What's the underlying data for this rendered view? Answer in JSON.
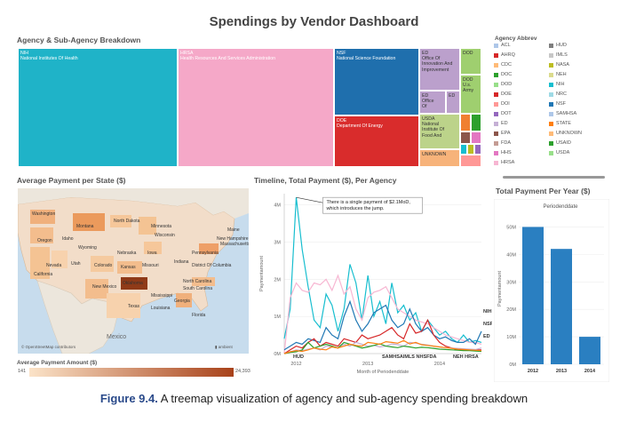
{
  "title": "Spendings by Vendor Dashboard",
  "treemap": {
    "heading": "Agency & Sub-Agency Breakdown",
    "cells": [
      {
        "id": "nih",
        "label": "NIH\nNational Institutes Of Health",
        "color": "#1fb3c8"
      },
      {
        "id": "hrsa",
        "label": "HRSA\nHealth Resources And Services Administration",
        "color": "#f5a8c8"
      },
      {
        "id": "nsf",
        "label": "NSF\nNational Science Foundation",
        "color": "#1f6fad"
      },
      {
        "id": "doe",
        "label": "DOE\nDepartment Of Energy",
        "color": "#d92c2c"
      },
      {
        "id": "ed1",
        "label": "ED\nOffice Of\nInnovation And\nImprovement",
        "color": "#bba0cc"
      },
      {
        "id": "ed2",
        "label": "ED\nOffice\nOf",
        "color": "#bba0cc"
      },
      {
        "id": "ed3",
        "label": "ED",
        "color": "#bba0cc"
      },
      {
        "id": "dod1",
        "label": "DOD",
        "color": "#9fcf6f"
      },
      {
        "id": "dod2",
        "label": "DOD\nU.s.\nArmy",
        "color": "#9fcf6f"
      },
      {
        "id": "usda",
        "label": "USDA\nNational\nInstitute Of\nFood And",
        "color": "#bcd38a"
      },
      {
        "id": "unknown",
        "label": "UNKNOWN",
        "color": "#f7b37a"
      },
      {
        "id": "s1",
        "label": "",
        "color": "#f08030"
      },
      {
        "id": "s2",
        "label": "",
        "color": "#2ca02c"
      },
      {
        "id": "s3",
        "label": "",
        "color": "#8c564b"
      },
      {
        "id": "s4",
        "label": "",
        "color": "#e377c2"
      },
      {
        "id": "s5",
        "label": "",
        "color": "#17becf"
      },
      {
        "id": "s6",
        "label": "",
        "color": "#bcbd22"
      },
      {
        "id": "s7",
        "label": "",
        "color": "#9467bd"
      },
      {
        "id": "s8",
        "label": "",
        "color": "#ff9896"
      }
    ]
  },
  "legend": {
    "heading": "Agency Abbrev",
    "items": [
      {
        "label": "ACL",
        "color": "#aec7e8"
      },
      {
        "label": "AHRQ",
        "color": "#d62728"
      },
      {
        "label": "CDC",
        "color": "#ffbb78"
      },
      {
        "label": "DOC",
        "color": "#2ca02c"
      },
      {
        "label": "DOD",
        "color": "#98df8a"
      },
      {
        "label": "DOE",
        "color": "#d62728"
      },
      {
        "label": "DOI",
        "color": "#ff9896"
      },
      {
        "label": "DOT",
        "color": "#9467bd"
      },
      {
        "label": "ED",
        "color": "#c5b0d5"
      },
      {
        "label": "EPA",
        "color": "#8c564b"
      },
      {
        "label": "FDA",
        "color": "#c49c94"
      },
      {
        "label": "HHS",
        "color": "#e377c2"
      },
      {
        "label": "HRSA",
        "color": "#f7b6d2"
      },
      {
        "label": "HUD",
        "color": "#7f7f7f"
      },
      {
        "label": "IMLS",
        "color": "#c7c7c7"
      },
      {
        "label": "NASA",
        "color": "#bcbd22"
      },
      {
        "label": "NEH",
        "color": "#dbdb8d"
      },
      {
        "label": "NIH",
        "color": "#17becf"
      },
      {
        "label": "NRC",
        "color": "#9edae5"
      },
      {
        "label": "NSF",
        "color": "#1f77b4"
      },
      {
        "label": "SAMHSA",
        "color": "#aec7e8"
      },
      {
        "label": "STATE",
        "color": "#ff7f0e"
      },
      {
        "label": "UNKNOWN",
        "color": "#ffbb78"
      },
      {
        "label": "USAID",
        "color": "#2ca02c"
      },
      {
        "label": "USDA",
        "color": "#98df8a"
      }
    ]
  },
  "map": {
    "heading": "Average Payment per State ($)",
    "country_label": "Mexico",
    "credit": "© OpenStreetMap contributors",
    "credit_right": "▮ ambient",
    "states": [
      "Washington",
      "Montana",
      "North Dakota",
      "Minnesota",
      "Oregon",
      "Idaho",
      "Wisconsin",
      "Wyoming",
      "Nebraska",
      "Iowa",
      "New Hampshire",
      "Massachusetts",
      "Nevada",
      "Utah",
      "Colorado",
      "Kansas",
      "Missouri",
      "Indiana",
      "Pennsylvania",
      "District Of Columbia",
      "California",
      "New Mexico",
      "Oklahoma",
      "North Carolina",
      "South Carolina",
      "Mississippi",
      "Georgia",
      "Texas",
      "Louisiana",
      "Florida",
      "Maine"
    ],
    "scale_heading": "Average Payment Amount ($)",
    "scale_min": "141",
    "scale_max": "24,393",
    "colors": {
      "low": "#fbe3c8",
      "high": "#a8421a",
      "land": "#f2ddc9",
      "water": "#c7dced"
    }
  },
  "chart_data": [
    {
      "type": "line",
      "title": "Timeline, Total Payment ($), Per Agency",
      "xlabel": "Month of Periodenddate",
      "ylabel": "Paymentamount",
      "x_ticks": [
        "2012",
        "2013",
        "2014"
      ],
      "y_ticks": [
        "0M",
        "1M",
        "2M",
        "3M",
        "4M"
      ],
      "ylim": [
        0,
        4300000
      ],
      "x": [
        0,
        1,
        2,
        3,
        4,
        5,
        6,
        7,
        8,
        9,
        10,
        11,
        12,
        13,
        14,
        15,
        16,
        17,
        18,
        19,
        20,
        21,
        22,
        23,
        24,
        25,
        26,
        27,
        28,
        29,
        30,
        31,
        32,
        33
      ],
      "annotation": "There is a single payment of $2.1MoD,\nwhich introduces the jump.",
      "series": [
        {
          "name": "NIH",
          "color": "#17becf",
          "values": [
            400000,
            1200000,
            4200000,
            2800000,
            1800000,
            900000,
            700000,
            1600000,
            1300000,
            600000,
            1200000,
            2400000,
            1900000,
            900000,
            2100000,
            1000000,
            1400000,
            800000,
            1900000,
            1100000,
            1300000,
            900000,
            1100000,
            600000,
            900000,
            700000,
            500000,
            600000,
            400000,
            300000,
            500000,
            300000,
            350000,
            300000
          ]
        },
        {
          "name": "HRSA",
          "color": "#f7b6d2",
          "values": [
            0,
            1500000,
            1900000,
            1700000,
            1650000,
            1900000,
            1850000,
            2000000,
            1700000,
            2100000,
            1600000,
            1800000,
            1200000,
            900000,
            1500000,
            1650000,
            1700000,
            1800000,
            1500000,
            1200000,
            1100000,
            1000000,
            900000,
            850000,
            800000,
            700000,
            600000,
            500000,
            450000,
            400000,
            350000,
            300000,
            300000,
            250000
          ]
        },
        {
          "name": "NSF",
          "color": "#1f77b4",
          "values": [
            100000,
            200000,
            300000,
            250000,
            400000,
            350000,
            300000,
            700000,
            500000,
            400000,
            1000000,
            1400000,
            900000,
            600000,
            800000,
            1100000,
            1200000,
            1300000,
            900000,
            700000,
            800000,
            1200000,
            800000,
            600000,
            700000,
            500000,
            400000,
            450000,
            350000,
            300000,
            300000,
            400000,
            250000,
            600000
          ]
        },
        {
          "name": "DOE",
          "color": "#d62728",
          "values": [
            0,
            100000,
            200000,
            150000,
            300000,
            400000,
            200000,
            300000,
            250000,
            200000,
            400000,
            350000,
            300000,
            500000,
            400000,
            450000,
            500000,
            600000,
            700000,
            500000,
            400000,
            800000,
            550000,
            600000,
            900000,
            500000,
            300000,
            200000,
            150000,
            100000,
            100000,
            100000,
            100000,
            100000
          ]
        },
        {
          "name": "ED",
          "color": "#c5b0d5",
          "values": [
            0,
            50000,
            100000,
            80000,
            120000,
            150000,
            100000,
            200000,
            180000,
            150000,
            250000,
            200000,
            300000,
            250000,
            200000,
            220000,
            180000,
            200000,
            260000,
            240000,
            200000,
            300000,
            280000,
            250000,
            230000,
            200000,
            180000,
            160000,
            150000,
            140000,
            130000,
            120000,
            110000,
            150000
          ]
        },
        {
          "name": "DOD",
          "color": "#2ca02c",
          "values": [
            0,
            30000,
            50000,
            100000,
            300000,
            150000,
            200000,
            250000,
            200000,
            150000,
            300000,
            250000,
            200000,
            150000,
            180000,
            220000,
            260000,
            200000,
            180000,
            160000,
            200000,
            180000,
            150000,
            170000,
            160000,
            140000,
            120000,
            110000,
            100000,
            90000,
            80000,
            80000,
            70000,
            60000
          ]
        },
        {
          "name": "USDA",
          "color": "#ff7f0e",
          "values": [
            0,
            50000,
            80000,
            60000,
            100000,
            150000,
            120000,
            100000,
            180000,
            150000,
            200000,
            250000,
            220000,
            200000,
            300000,
            280000,
            250000,
            320000,
            300000,
            280000,
            350000,
            260000,
            300000,
            240000,
            220000,
            200000,
            180000,
            160000,
            140000,
            120000,
            110000,
            100000,
            90000,
            80000
          ]
        }
      ],
      "end_labels": [
        "NIH",
        "NSF",
        "ED"
      ],
      "bottom_labels": [
        "HUD",
        "SAMHSAIMLS NHSFDA",
        "NEH HRSA"
      ]
    },
    {
      "type": "bar",
      "title": "Total Payment Per Year ($)",
      "header": "Periodenddate",
      "categories": [
        "2012",
        "2013",
        "2014"
      ],
      "values": [
        50000000,
        42000000,
        10000000
      ],
      "ylabel": "Paymentamount",
      "y_ticks": [
        "0M",
        "10M",
        "20M",
        "30M",
        "40M",
        "50M"
      ],
      "ylim": [
        0,
        55000000
      ],
      "color": "#2a7fc1"
    }
  ],
  "caption": {
    "figure": "Figure 9.4.",
    "text": " A treemap visualization of agency and sub-agency spending breakdown"
  }
}
